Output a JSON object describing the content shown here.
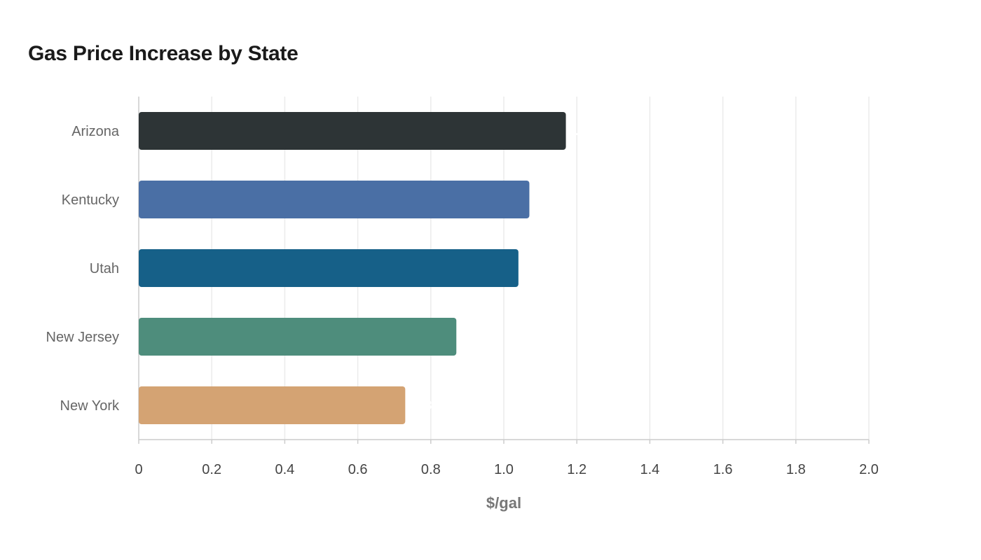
{
  "chart_data": {
    "type": "bar",
    "orientation": "horizontal",
    "title": "Gas Price Increase by State",
    "xlabel": "$/gal",
    "ylabel": "",
    "categories": [
      "Arizona",
      "Kentucky",
      "Utah",
      "New Jersey",
      "New York"
    ],
    "values": [
      1.17,
      1.07,
      1.04,
      0.87,
      0.73
    ],
    "colors": [
      "#2d3436",
      "#4a6fa5",
      "#166088",
      "#4e8d7c",
      "#d4a373"
    ],
    "xlim": [
      0,
      2.0
    ],
    "xticks": [
      "0",
      "0.2",
      "0.4",
      "0.6",
      "0.8",
      "1.0",
      "1.2",
      "1.4",
      "1.6",
      "1.8",
      "2.0"
    ],
    "grid": true,
    "legend": "none",
    "data_label_color": "#ffffff"
  }
}
